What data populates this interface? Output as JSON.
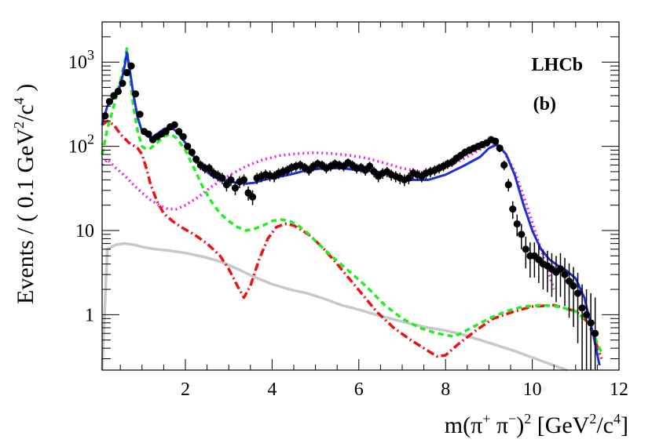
{
  "chart_data": {
    "type": "scatter",
    "title": "",
    "annotations": {
      "experiment": "LHCb",
      "panel": "(b)"
    },
    "xlabel_main": "m(π",
    "xlabel_sup1": "+",
    "xlabel_mid": " π",
    "xlabel_sup2": "−",
    "xlabel_tail": ")",
    "xlabel_sup3": "2",
    "xlabel_units": " [GeV",
    "xlabel_sup4": "2",
    "xlabel_units2": "/c",
    "xlabel_sup5": "4",
    "xlabel_units3": "]",
    "ylabel_main": "Events / ( 0.1 GeV",
    "ylabel_sup1": "2",
    "ylabel_mid": "/c",
    "ylabel_sup2": "4",
    "ylabel_tail": " )",
    "xlim": [
      0.08,
      12
    ],
    "ylim": [
      0.22,
      3000
    ],
    "yscale": "log",
    "x_ticks": [
      "2",
      "4",
      "6",
      "8",
      "10",
      "12"
    ],
    "x_tick_values": [
      2,
      4,
      6,
      8,
      10,
      12
    ],
    "y_ticks": [
      "1",
      "10",
      "10²",
      "10³"
    ],
    "y_tick_values": [
      1,
      10,
      100,
      1000
    ],
    "grid": false,
    "colors": {
      "data": "#000000",
      "total_fit": "#1f2fd6",
      "green_component": "#22ee22",
      "red_component": "#ee1111",
      "magenta_component": "#ee22ee",
      "gray_component": "#c8c8c8"
    },
    "series": [
      {
        "style": "data-points",
        "x": [
          0.15,
          0.25,
          0.35,
          0.45,
          0.55,
          0.65,
          0.75,
          0.85,
          0.95,
          1.05,
          1.15,
          1.25,
          1.35,
          1.45,
          1.55,
          1.65,
          1.75,
          1.85,
          1.95,
          2.05,
          2.15,
          2.25,
          2.35,
          2.45,
          2.55,
          2.65,
          2.75,
          2.85,
          2.95,
          3.05,
          3.15,
          3.25,
          3.35,
          3.45,
          3.55,
          3.65,
          3.75,
          3.85,
          3.95,
          4.05,
          4.15,
          4.25,
          4.35,
          4.45,
          4.55,
          4.65,
          4.75,
          4.85,
          4.95,
          5.05,
          5.15,
          5.25,
          5.35,
          5.45,
          5.55,
          5.65,
          5.75,
          5.85,
          5.95,
          6.05,
          6.15,
          6.25,
          6.35,
          6.45,
          6.55,
          6.65,
          6.75,
          6.85,
          6.95,
          7.05,
          7.15,
          7.25,
          7.35,
          7.45,
          7.55,
          7.65,
          7.75,
          7.85,
          7.95,
          8.05,
          8.15,
          8.25,
          8.35,
          8.45,
          8.55,
          8.65,
          8.75,
          8.85,
          8.95,
          9.05,
          9.15,
          9.25,
          9.35,
          9.45,
          9.55,
          9.65,
          9.75,
          9.85,
          9.95,
          10.05,
          10.15,
          10.25,
          10.35,
          10.45,
          10.55,
          10.65,
          10.75,
          10.85,
          10.95,
          11.05,
          11.15,
          11.25,
          11.35,
          11.45
        ],
        "y": [
          230,
          340,
          400,
          450,
          560,
          750,
          900,
          420,
          240,
          150,
          140,
          120,
          130,
          140,
          150,
          170,
          180,
          150,
          130,
          100,
          85,
          70,
          60,
          55,
          55,
          48,
          45,
          42,
          35,
          40,
          32,
          38,
          40,
          28,
          25,
          42,
          44,
          46,
          45,
          44,
          48,
          50,
          52,
          56,
          58,
          60,
          56,
          52,
          58,
          62,
          60,
          55,
          58,
          62,
          60,
          58,
          64,
          60,
          55,
          56,
          52,
          58,
          50,
          44,
          48,
          50,
          46,
          44,
          42,
          40,
          42,
          48,
          46,
          44,
          48,
          50,
          52,
          55,
          58,
          62,
          65,
          72,
          78,
          85,
          90,
          95,
          100,
          105,
          110,
          120,
          115,
          95,
          60,
          35,
          18,
          12,
          9,
          6,
          5,
          5,
          4.5,
          4,
          3.8,
          3.5,
          3.2,
          3.5,
          3,
          2.5,
          2.2,
          1.8,
          1.2,
          1.0,
          0.8,
          0.6
        ]
      },
      {
        "name": "",
        "style": "total-fit",
        "x": [
          0.08,
          0.2,
          0.35,
          0.5,
          0.6,
          0.65,
          0.72,
          0.8,
          0.9,
          1.0,
          1.1,
          1.2,
          1.35,
          1.5,
          1.65,
          1.8,
          2.0,
          2.2,
          2.4,
          2.6,
          2.8,
          3.0,
          3.2,
          3.4,
          3.6,
          3.8,
          4.0,
          4.4,
          4.8,
          5.2,
          5.6,
          6.0,
          6.4,
          6.8,
          7.2,
          7.6,
          8.0,
          8.4,
          8.8,
          9.0,
          9.2,
          9.4,
          9.6,
          9.8,
          10.0,
          10.2,
          10.4,
          10.6,
          10.8,
          11.0,
          11.2,
          11.4,
          11.55
        ],
        "y": [
          180,
          300,
          380,
          520,
          900,
          1300,
          800,
          420,
          220,
          150,
          135,
          125,
          140,
          160,
          170,
          150,
          110,
          75,
          55,
          45,
          40,
          38,
          37,
          36,
          37,
          40,
          42,
          46,
          52,
          55,
          55,
          52,
          50,
          45,
          40,
          40,
          46,
          58,
          75,
          95,
          105,
          80,
          45,
          20,
          10,
          6,
          4.5,
          3.8,
          3.3,
          2.7,
          1.6,
          0.6,
          0.25
        ]
      },
      {
        "name": "",
        "style": "green-dashed",
        "x": [
          0.08,
          0.2,
          0.35,
          0.5,
          0.6,
          0.65,
          0.72,
          0.8,
          0.9,
          1.0,
          1.1,
          1.2,
          1.35,
          1.5,
          1.65,
          1.8,
          2.0,
          2.2,
          2.4,
          2.6,
          2.8,
          3.0,
          3.2,
          3.4,
          3.6,
          3.8,
          4.0,
          4.2,
          4.4,
          4.6,
          4.8,
          5.0,
          5.4,
          5.8,
          6.2,
          6.6,
          7.0,
          7.4,
          7.8,
          8.2,
          8.6,
          9.0,
          9.4,
          9.8,
          10.2,
          10.6,
          11.0,
          11.3,
          11.6
        ],
        "y": [
          80,
          160,
          300,
          600,
          1000,
          1450,
          700,
          300,
          150,
          100,
          92,
          95,
          110,
          130,
          140,
          125,
          90,
          55,
          33,
          22,
          16,
          13,
          11,
          10,
          10.5,
          11.5,
          13,
          13.5,
          13,
          11.5,
          9.5,
          7.5,
          4.8,
          3.2,
          2.1,
          1.3,
          0.9,
          0.7,
          0.6,
          0.55,
          0.7,
          0.9,
          1.1,
          1.25,
          1.3,
          1.25,
          1.1,
          0.8,
          0.35
        ]
      },
      {
        "name": "",
        "style": "red-dashdot",
        "x": [
          0.08,
          0.2,
          0.35,
          0.5,
          0.7,
          0.9,
          1.0,
          1.1,
          1.2,
          1.35,
          1.5,
          1.7,
          1.9,
          2.2,
          2.5,
          2.8,
          3.0,
          3.2,
          3.35,
          3.5,
          3.7,
          3.9,
          4.1,
          4.3,
          4.5,
          4.7,
          4.9,
          5.2,
          5.5,
          5.8,
          6.1,
          6.4,
          6.8,
          7.2,
          7.5,
          7.8,
          8.0,
          8.3,
          8.7,
          9.1,
          9.6,
          10.0,
          10.5,
          11.0,
          11.3,
          11.6
        ],
        "y": [
          180,
          200,
          180,
          140,
          110,
          95,
          80,
          55,
          35,
          22,
          16,
          13,
          11,
          9,
          7,
          5,
          3.5,
          2.2,
          1.6,
          2.2,
          4.5,
          8,
          11,
          12,
          11.5,
          10,
          8.5,
          6,
          4,
          2.6,
          1.7,
          1.1,
          0.7,
          0.5,
          0.4,
          0.32,
          0.33,
          0.45,
          0.65,
          0.9,
          1.1,
          1.25,
          1.3,
          1.1,
          0.8,
          0.3
        ]
      },
      {
        "name": "",
        "style": "magenta-dotted",
        "x": [
          0.08,
          0.2,
          0.4,
          0.6,
          0.8,
          1.0,
          1.2,
          1.4,
          1.6,
          1.8,
          2.0,
          2.3,
          2.6,
          3.0,
          3.4,
          3.8,
          4.2,
          4.6,
          5.0,
          5.4,
          5.8,
          6.2,
          6.6,
          7.0,
          7.4,
          7.8,
          8.2,
          8.6,
          9.0,
          9.3,
          9.6,
          9.9,
          10.2,
          10.5
        ],
        "y": [
          60,
          70,
          55,
          45,
          35,
          28,
          23,
          20,
          18,
          18,
          20,
          25,
          33,
          45,
          58,
          70,
          78,
          82,
          84,
          82,
          78,
          72,
          63,
          55,
          50,
          52,
          62,
          80,
          105,
          95,
          50,
          18,
          6,
          2
        ]
      },
      {
        "name": "",
        "style": "gray-solid",
        "x": [
          0.08,
          0.2,
          0.4,
          0.6,
          0.8,
          1.0,
          1.3,
          1.6,
          2.0,
          2.4,
          2.8,
          3.2,
          3.6,
          4.0,
          4.4,
          4.8,
          5.2,
          5.6,
          6.0,
          6.4,
          6.8,
          7.2,
          7.6,
          8.0,
          8.4,
          8.8,
          9.2,
          9.6,
          10.0,
          10.4,
          10.8
        ],
        "y": [
          0.22,
          6,
          6.8,
          7,
          6.8,
          6.4,
          6,
          5.8,
          5.4,
          4.9,
          4.3,
          3.5,
          2.8,
          2.3,
          2,
          1.8,
          1.55,
          1.3,
          1.15,
          1.0,
          0.88,
          0.78,
          0.7,
          0.65,
          0.58,
          0.5,
          0.43,
          0.37,
          0.31,
          0.26,
          0.22
        ]
      }
    ]
  }
}
